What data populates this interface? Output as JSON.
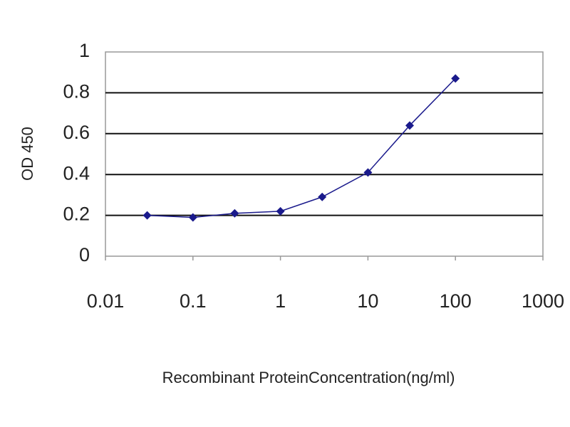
{
  "chart_data": {
    "type": "line",
    "y_label": "OD 450",
    "x_label": "Recombinant ProteinConcentration(ng/ml)",
    "x": [
      0.03,
      0.1,
      0.3,
      1,
      3,
      10,
      30,
      100
    ],
    "series": [
      {
        "color": "#1a1a8c",
        "values": [
          0.2,
          0.19,
          0.21,
          0.22,
          0.29,
          0.41,
          0.64,
          0.87
        ]
      }
    ],
    "xscale": "log",
    "xlim": [
      0.01,
      1000
    ],
    "xticks": [
      0.01,
      0.1,
      1,
      10,
      100,
      1000
    ],
    "ylim": [
      0,
      1
    ],
    "yticks": [
      0,
      0.2,
      0.4,
      0.6,
      0.8,
      1
    ],
    "grid": true
  }
}
